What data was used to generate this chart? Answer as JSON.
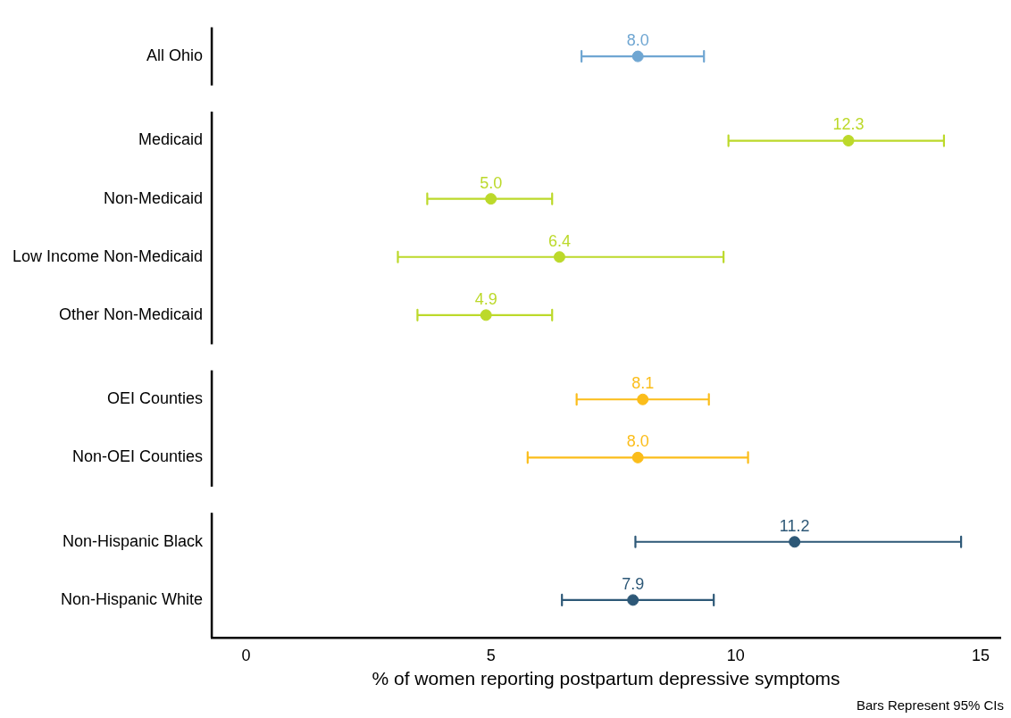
{
  "chart_data": {
    "type": "scatter",
    "orientation": "horizontal",
    "categories": [
      "All Ohio",
      "Medicaid",
      "Non-Medicaid",
      "Low Income Non-Medicaid",
      "Other Non-Medicaid",
      "OEI Counties",
      "Non-OEI Counties",
      "Non-Hispanic Black",
      "Non-Hispanic White"
    ],
    "series": [
      {
        "color": "#6fa6d2",
        "values": [
          8.0,
          null,
          null,
          null,
          null,
          null,
          null,
          null,
          null
        ],
        "value_labels": [
          "8.0",
          null,
          null,
          null,
          null,
          null,
          null,
          null,
          null
        ],
        "errors": [
          [
            6.85,
            9.35
          ],
          null,
          null,
          null,
          null,
          null,
          null,
          null,
          null
        ]
      },
      {
        "color": "#bcd92a",
        "values": [
          null,
          12.3,
          5.0,
          6.4,
          4.9,
          null,
          null,
          null,
          null
        ],
        "value_labels": [
          null,
          "12.3",
          "5.0",
          "6.4",
          "4.9",
          null,
          null,
          null,
          null
        ],
        "errors": [
          null,
          [
            9.85,
            14.25
          ],
          [
            3.7,
            6.25
          ],
          [
            3.1,
            9.75
          ],
          [
            3.5,
            6.25
          ],
          null,
          null,
          null,
          null
        ]
      },
      {
        "color": "#fbbd1a",
        "values": [
          null,
          null,
          null,
          null,
          null,
          8.1,
          8.0,
          null,
          null
        ],
        "value_labels": [
          null,
          null,
          null,
          null,
          null,
          "8.1",
          "8.0",
          null,
          null
        ],
        "errors": [
          null,
          null,
          null,
          null,
          null,
          [
            6.75,
            9.45
          ],
          [
            5.75,
            10.25
          ],
          null,
          null
        ]
      },
      {
        "color": "#2d5877",
        "values": [
          null,
          null,
          null,
          null,
          null,
          null,
          null,
          11.2,
          7.9
        ],
        "value_labels": [
          null,
          null,
          null,
          null,
          null,
          null,
          null,
          "11.2",
          "7.9"
        ],
        "errors": [
          null,
          null,
          null,
          null,
          null,
          null,
          null,
          [
            7.95,
            14.6
          ],
          [
            6.45,
            9.55
          ]
        ]
      }
    ],
    "xlim": [
      -0.7,
      15.4
    ],
    "xticks": [
      0,
      5,
      10,
      15
    ],
    "xlabel": "% of women reporting postpartum depressive symptoms",
    "grid": false,
    "legend": false,
    "marker": "circle",
    "annotations": [
      "Bars Represent 95% CIs"
    ]
  }
}
